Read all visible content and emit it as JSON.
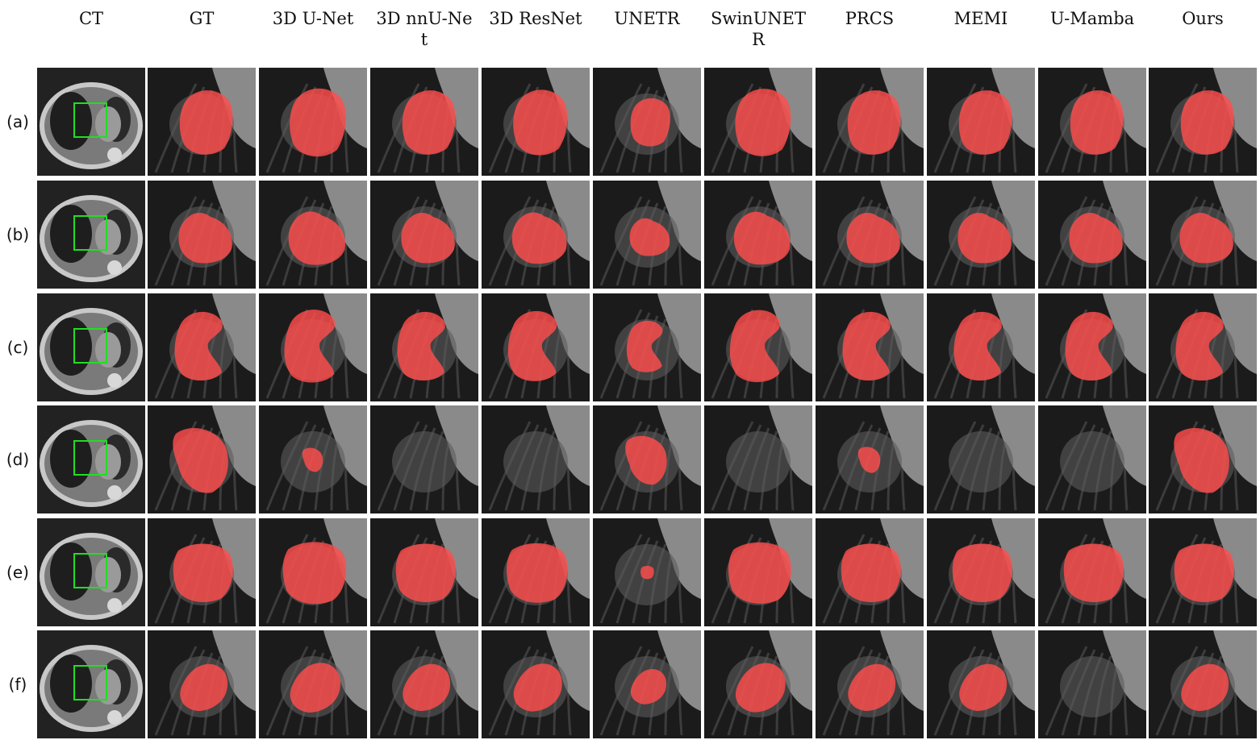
{
  "columns": [
    "CT",
    "GT",
    "3D U-Net",
    "3D nnU-Net",
    "3D ResNet",
    "UNETR",
    "SwinUNETR",
    "PRCS",
    "MEMI",
    "U-Mamba",
    "Ours"
  ],
  "rows": [
    "(a)",
    "(b)",
    "(c)",
    "(d)",
    "(e)",
    "(f)"
  ],
  "colors": {
    "mask": "#ff4d4d",
    "roi_box": "#22dd22",
    "lung_bg": "#1b1b1b",
    "tissue": "#8a8a8a",
    "ct_body": "#c8c8c8"
  },
  "mask_presence": {
    "(a)": [
      true,
      true,
      true,
      true,
      true,
      true,
      true,
      true,
      true,
      true
    ],
    "(b)": [
      true,
      true,
      true,
      true,
      true,
      true,
      true,
      true,
      true,
      true
    ],
    "(c)": [
      true,
      true,
      true,
      true,
      true,
      true,
      true,
      true,
      true,
      true
    ],
    "(d)": [
      true,
      true,
      false,
      false,
      true,
      false,
      true,
      false,
      false,
      true
    ],
    "(e)": [
      true,
      true,
      true,
      true,
      true,
      true,
      true,
      true,
      true,
      true
    ],
    "(f)": [
      true,
      true,
      true,
      true,
      true,
      true,
      true,
      true,
      false,
      true
    ]
  }
}
